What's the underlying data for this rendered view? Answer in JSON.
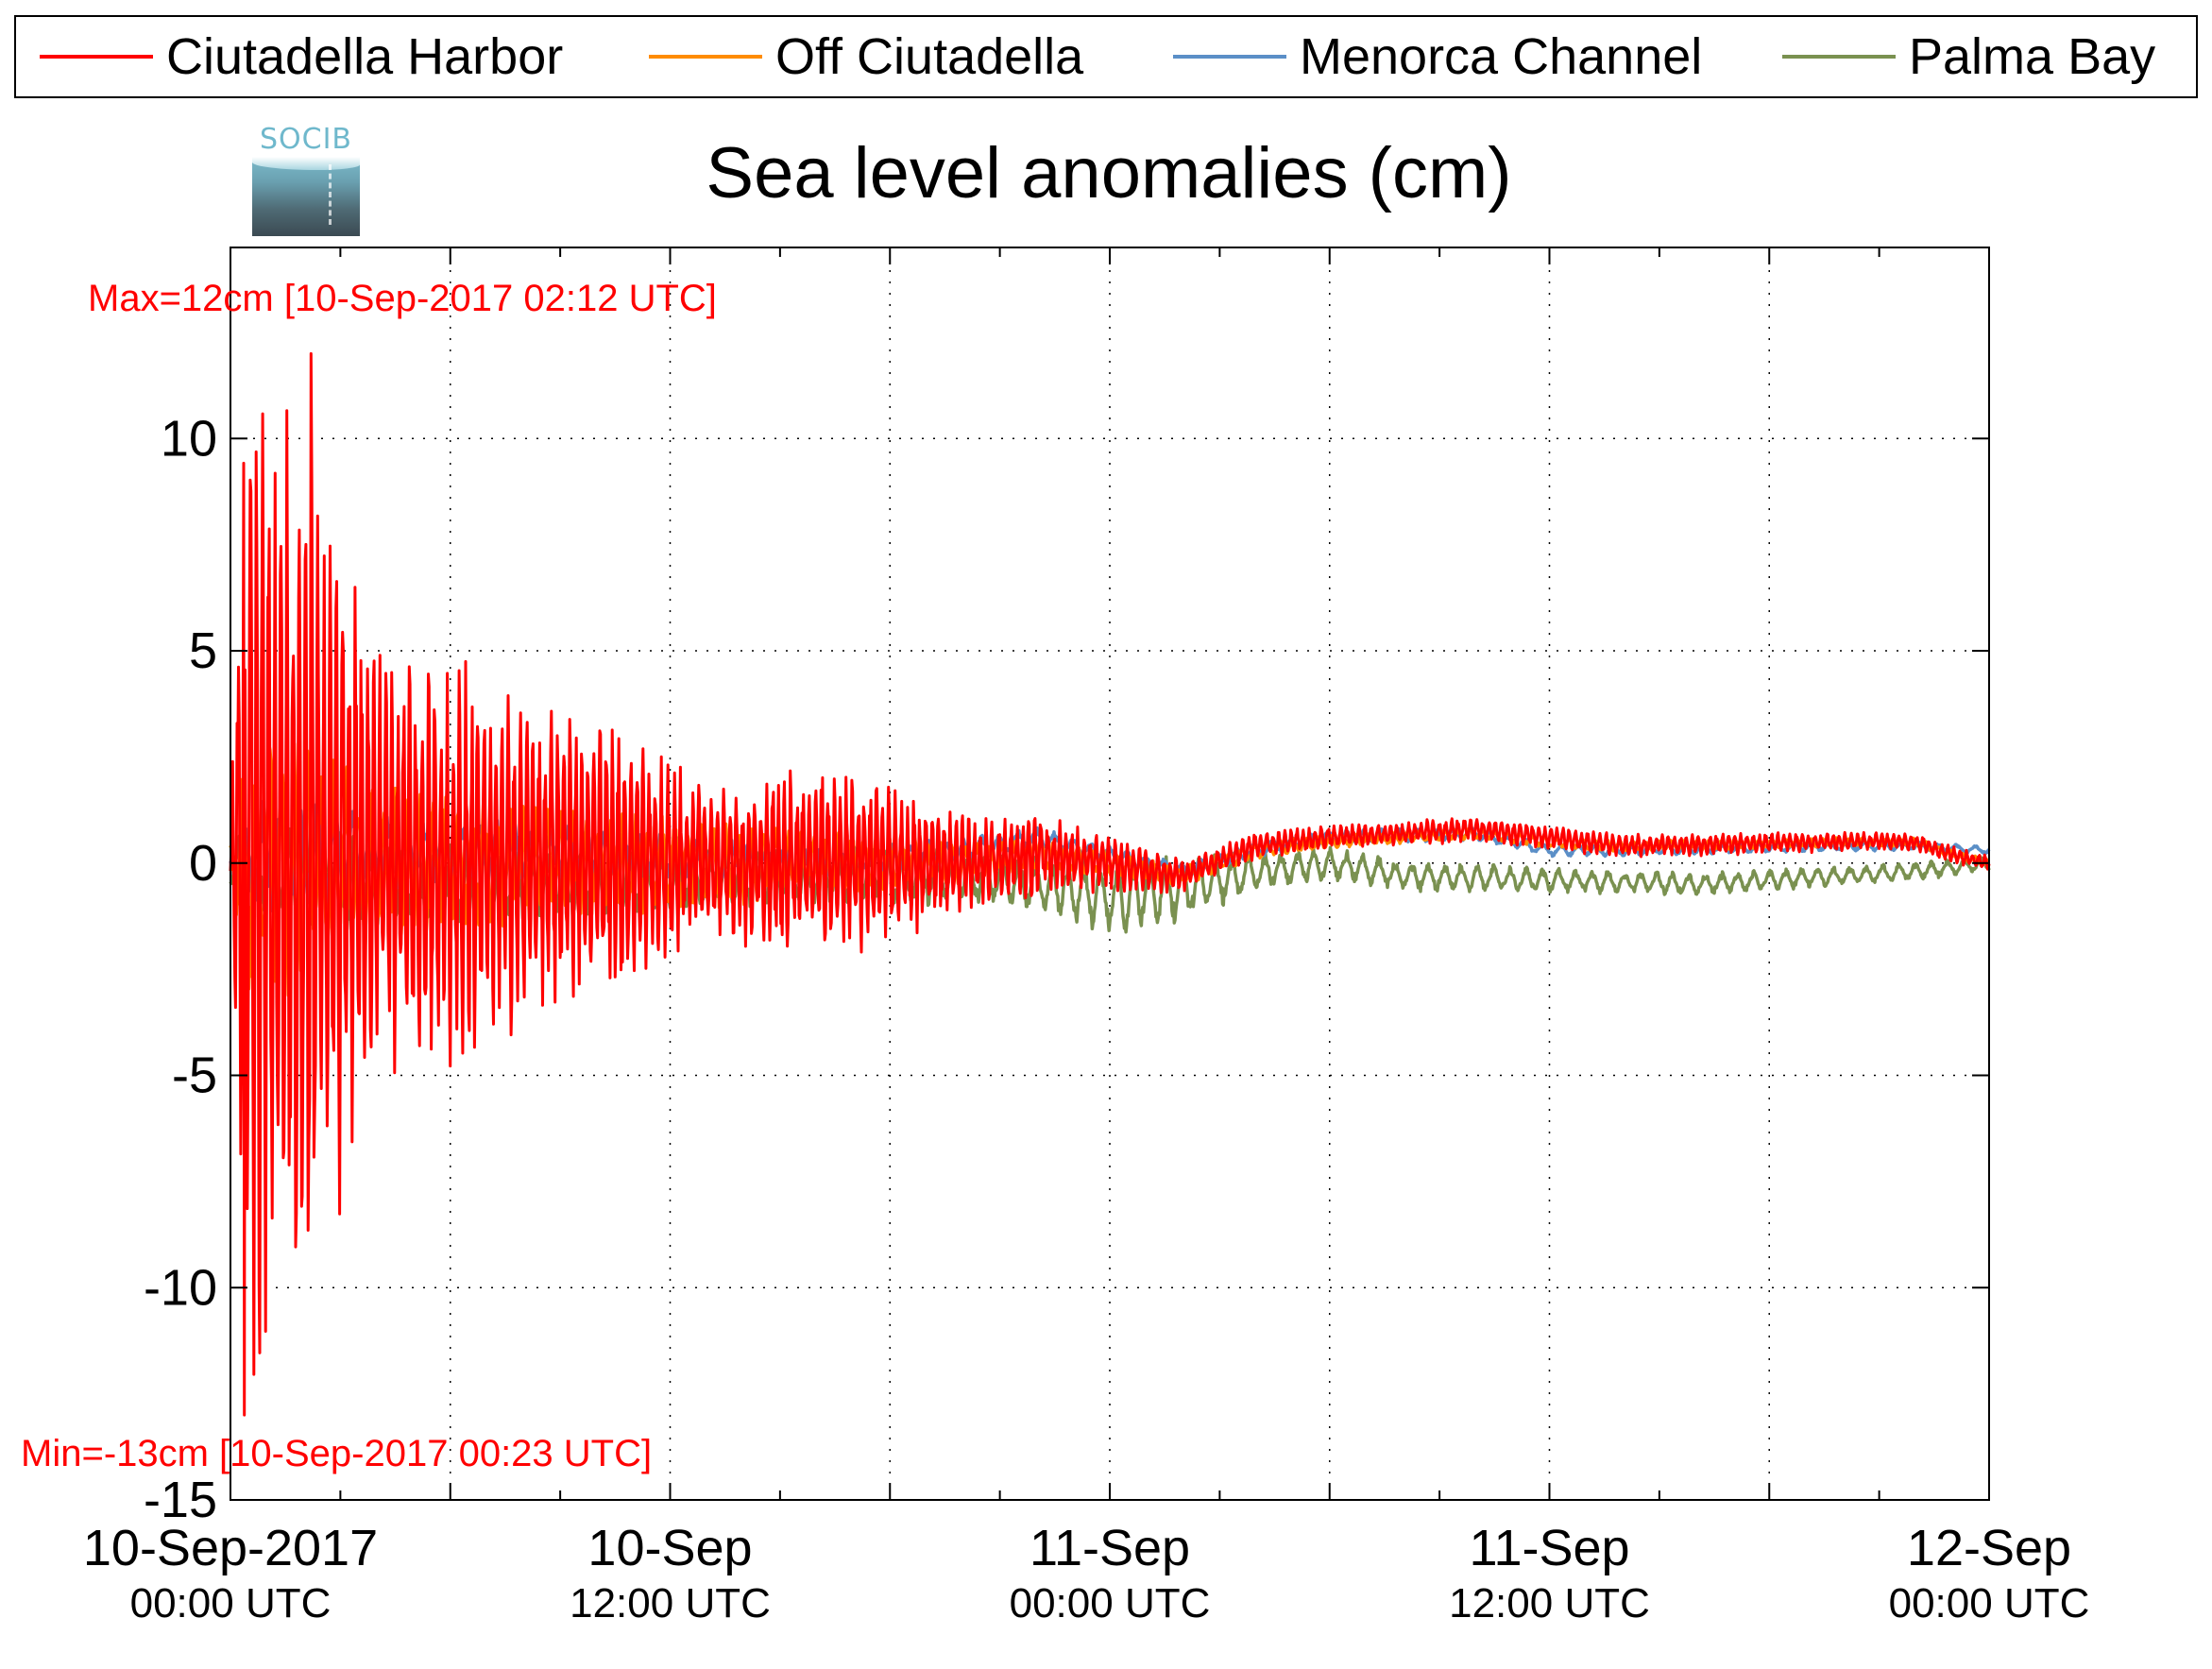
{
  "chart_data": {
    "type": "line",
    "title": "Sea level anomalies (cm)",
    "xlabel": "",
    "ylabel": "",
    "ylim": [
      -15,
      14.5
    ],
    "xlim_hours": [
      0,
      48
    ],
    "grid": true,
    "legend_position": "top (outside plot, boxed)",
    "y_ticks": [
      "10",
      "5",
      "0",
      "-5",
      "-10",
      "-15"
    ],
    "x_ticks": [
      {
        "date": "10-Sep-2017",
        "time": "00:00 UTC"
      },
      {
        "date": "10-Sep",
        "time": "12:00 UTC"
      },
      {
        "date": "11-Sep",
        "time": "00:00 UTC"
      },
      {
        "date": "11-Sep",
        "time": "12:00 UTC"
      },
      {
        "date": "12-Sep",
        "time": "00:00 UTC"
      }
    ],
    "annotations": {
      "max": "Max=12cm [10-Sep-2017 02:12 UTC]",
      "min": "Min=-13cm [10-Sep-2017 00:23 UTC]"
    },
    "series": [
      {
        "name": "Ciutadella Harbor",
        "color": "#ff0000",
        "envelope": [
          [
            0,
            1.0
          ],
          [
            0.4,
            13.0
          ],
          [
            1,
            12.0
          ],
          [
            2,
            12.0
          ],
          [
            3,
            9.0
          ],
          [
            4,
            5.0
          ],
          [
            6,
            5.0
          ],
          [
            8,
            4.0
          ],
          [
            10,
            3.5
          ],
          [
            12,
            2.5
          ],
          [
            14,
            2.0
          ],
          [
            16,
            2.5
          ],
          [
            18,
            2.0
          ],
          [
            20,
            1.2
          ],
          [
            22,
            1.0
          ],
          [
            24,
            0.7
          ],
          [
            26,
            0.4
          ],
          [
            30,
            0.3
          ],
          [
            36,
            0.3
          ],
          [
            42,
            0.25
          ],
          [
            48,
            0.2
          ]
        ],
        "trend": [
          [
            0,
            0
          ],
          [
            8,
            0
          ],
          [
            16,
            0
          ],
          [
            20,
            0
          ],
          [
            22,
            0.2
          ],
          [
            24,
            0
          ],
          [
            26,
            -0.3
          ],
          [
            28,
            0.4
          ],
          [
            30,
            0.6
          ],
          [
            34,
            0.8
          ],
          [
            36,
            0.6
          ],
          [
            38,
            0.4
          ],
          [
            44,
            0.5
          ],
          [
            46,
            0.5
          ],
          [
            47,
            0.2
          ],
          [
            48,
            0
          ]
        ],
        "period_hours": 0.17,
        "extremes": [
          {
            "hour": 0.38,
            "value": -13
          },
          {
            "hour": 2.2,
            "value": 12
          }
        ]
      },
      {
        "name": "Off Ciutadella",
        "color": "#ff8c00",
        "envelope": [
          [
            0,
            0.5
          ],
          [
            0.5,
            3.5
          ],
          [
            2,
            3.0
          ],
          [
            4,
            2.0
          ],
          [
            8,
            1.5
          ],
          [
            12,
            1.2
          ],
          [
            16,
            0.8
          ],
          [
            20,
            0.5
          ],
          [
            24,
            0.3
          ],
          [
            30,
            0.15
          ],
          [
            48,
            0.1
          ]
        ],
        "trend": [
          [
            0,
            0
          ],
          [
            8,
            0
          ],
          [
            16,
            0
          ],
          [
            20,
            0
          ],
          [
            22,
            0.2
          ],
          [
            24,
            0
          ],
          [
            26,
            -0.3
          ],
          [
            28,
            0.3
          ],
          [
            30,
            0.5
          ],
          [
            34,
            0.7
          ],
          [
            36,
            0.5
          ],
          [
            38,
            0.4
          ],
          [
            44,
            0.5
          ],
          [
            46,
            0.5
          ],
          [
            47,
            0.2
          ],
          [
            48,
            0
          ]
        ],
        "period_hours": 0.35,
        "extremes": [
          {
            "hour": 0.3,
            "value": -5
          }
        ]
      },
      {
        "name": "Menorca Channel",
        "color": "#5b8fc7",
        "envelope": [
          [
            0,
            0.5
          ],
          [
            1,
            1.5
          ],
          [
            3,
            1.2
          ],
          [
            6,
            0.8
          ],
          [
            10,
            0.6
          ],
          [
            16,
            0.4
          ],
          [
            20,
            0.3
          ],
          [
            24,
            0.2
          ],
          [
            48,
            0.1
          ]
        ],
        "trend": [
          [
            0,
            0
          ],
          [
            2,
            0.2
          ],
          [
            8,
            0.3
          ],
          [
            16,
            0
          ],
          [
            20,
            0.3
          ],
          [
            22,
            0.6
          ],
          [
            24,
            0.2
          ],
          [
            26,
            -0.2
          ],
          [
            28,
            0.3
          ],
          [
            30,
            0.6
          ],
          [
            34,
            0.7
          ],
          [
            36,
            0.3
          ],
          [
            38,
            0.3
          ],
          [
            44,
            0.4
          ],
          [
            46,
            0.4
          ],
          [
            48,
            0.3
          ]
        ],
        "period_hours": 0.5,
        "extremes": []
      },
      {
        "name": "Palma Bay",
        "color": "#7a9150",
        "envelope": [
          [
            0,
            0.6
          ],
          [
            2,
            1.5
          ],
          [
            4,
            1.0
          ],
          [
            8,
            0.9
          ],
          [
            12,
            0.7
          ],
          [
            16,
            0.7
          ],
          [
            20,
            0.7
          ],
          [
            22,
            0.7
          ],
          [
            24,
            0.9
          ],
          [
            26,
            0.8
          ],
          [
            28,
            0.5
          ],
          [
            30,
            0.4
          ],
          [
            36,
            0.3
          ],
          [
            42,
            0.25
          ],
          [
            48,
            0.2
          ]
        ],
        "trend": [
          [
            0,
            0
          ],
          [
            4,
            -0.5
          ],
          [
            8,
            -0.5
          ],
          [
            12,
            -0.4
          ],
          [
            16,
            -0.3
          ],
          [
            20,
            -0.3
          ],
          [
            22,
            -0.5
          ],
          [
            24,
            -0.8
          ],
          [
            26,
            -0.6
          ],
          [
            28,
            -0.2
          ],
          [
            30,
            0.0
          ],
          [
            32,
            -0.3
          ],
          [
            36,
            -0.4
          ],
          [
            40,
            -0.5
          ],
          [
            44,
            -0.3
          ],
          [
            46,
            -0.2
          ],
          [
            48,
            0
          ]
        ],
        "period_hours": 0.45,
        "extremes": []
      }
    ]
  },
  "logo": {
    "text": "SOCIB"
  }
}
